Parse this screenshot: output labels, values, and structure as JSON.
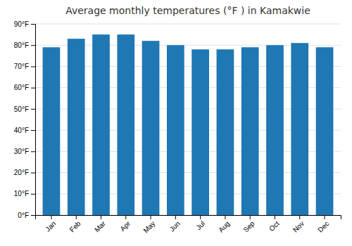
{
  "chart_data": {
    "type": "bar",
    "title": "Average monthly temperatures (°F ) in Kamakwie",
    "categories": [
      "Jan",
      "Feb",
      "Mar",
      "Apr",
      "May",
      "Jun",
      "Jul",
      "Aug",
      "Sep",
      "Oct",
      "Nov",
      "Dec"
    ],
    "values": [
      79,
      83,
      85,
      85,
      82,
      80,
      78,
      78,
      79,
      80,
      81,
      79
    ],
    "ylim": [
      0,
      90
    ],
    "yticks": [
      {
        "value": 0,
        "label": "0°F"
      },
      {
        "value": 10,
        "label": "10°F"
      },
      {
        "value": 20,
        "label": "20°F"
      },
      {
        "value": 30,
        "label": "30°F"
      },
      {
        "value": 40,
        "label": "40°F"
      },
      {
        "value": 50,
        "label": "50°F"
      },
      {
        "value": 60,
        "label": "60°F"
      },
      {
        "value": 70,
        "label": "70°F"
      },
      {
        "value": 80,
        "label": "80°F"
      },
      {
        "value": 90,
        "label": "90°F"
      }
    ],
    "grid": true
  }
}
